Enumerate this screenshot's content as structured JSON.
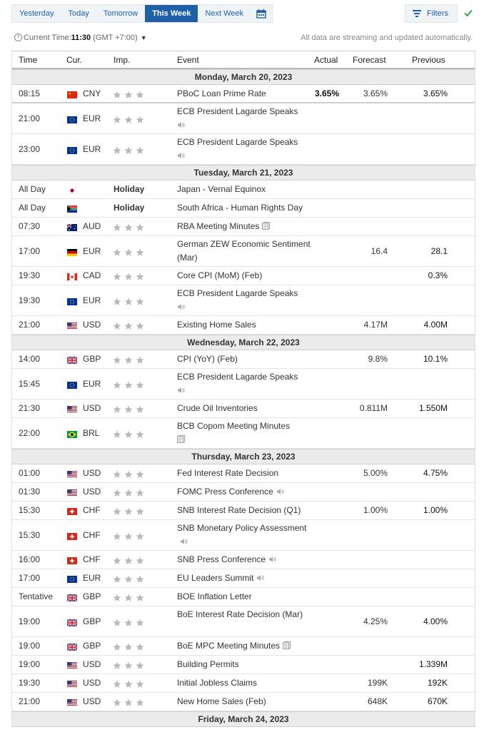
{
  "tabs": [
    {
      "label": "Yesterday",
      "active": false
    },
    {
      "label": "Today",
      "active": false
    },
    {
      "label": "Tomorrow",
      "active": false
    },
    {
      "label": "This Week",
      "active": true
    },
    {
      "label": "Next Week",
      "active": false
    }
  ],
  "filters_label": "Filters",
  "time": {
    "label": "Current Time:",
    "value": "11:30",
    "tz": "(GMT +7:00)",
    "note": "All data are streaming and updated automatically."
  },
  "header": {
    "time": "Time",
    "cur": "Cur.",
    "imp": "Imp.",
    "event": "Event",
    "actual": "Actual",
    "forecast": "Forecast",
    "previous": "Previous"
  },
  "colors": {
    "accent": "#1e5fa8",
    "check": "#3aa043",
    "star": "#b9b9b9"
  },
  "rows": [
    {
      "type": "day",
      "label": "Monday, March 20, 2023"
    },
    {
      "type": "event",
      "time": "08:15",
      "flag": "cn",
      "cur": "CNY",
      "event": "PBoC Loan Prime Rate",
      "actual": "3.65%",
      "forecast": "3.65%",
      "previous": "3.65%",
      "prev_bold": true,
      "h": 26,
      "thick": true
    },
    {
      "type": "event",
      "time": "21:00",
      "flag": "eu",
      "cur": "EUR",
      "event": "ECB President Lagarde Speaks",
      "icon": "speaker-icon",
      "icon_newline": true,
      "h": 43
    },
    {
      "type": "event",
      "time": "23:00",
      "flag": "eu",
      "cur": "EUR",
      "event": "ECB President Lagarde Speaks",
      "icon": "speaker-icon",
      "icon_newline": true,
      "h": 43
    },
    {
      "type": "day",
      "label": "Tuesday, March 21, 2023"
    },
    {
      "type": "holiday",
      "time": "All Day",
      "flag": "jp",
      "label": "Holiday",
      "event": "Japan - Vernal Equinox",
      "h": 26
    },
    {
      "type": "holiday",
      "time": "All Day",
      "flag": "za",
      "label": "Holiday",
      "event": "South Africa - Human Rights Day",
      "h": 26
    },
    {
      "type": "event",
      "time": "07:30",
      "flag": "au",
      "cur": "AUD",
      "event": "RBA Meeting Minutes",
      "icon": "document-icon",
      "h": 26
    },
    {
      "type": "event",
      "time": "17:00",
      "flag": "de",
      "cur": "EUR",
      "event": "German ZEW Economic Sentiment (Mar)",
      "forecast": "16.4",
      "previous": "28.1",
      "prev_bold": true,
      "h": 43
    },
    {
      "type": "event",
      "time": "19:30",
      "flag": "ca",
      "cur": "CAD",
      "event": "Core CPI (MoM) (Feb)",
      "previous": "0.3%",
      "prev_bold": true,
      "h": 26
    },
    {
      "type": "event",
      "time": "19:30",
      "flag": "eu",
      "cur": "EUR",
      "event": "ECB President Lagarde Speaks",
      "icon": "speaker-icon",
      "icon_newline": true,
      "h": 43
    },
    {
      "type": "event",
      "time": "21:00",
      "flag": "us",
      "cur": "USD",
      "event": "Existing Home Sales",
      "forecast": "4.17M",
      "previous": "4.00M",
      "prev_bold": true,
      "h": 26
    },
    {
      "type": "day",
      "label": "Wednesday, March 22, 2023"
    },
    {
      "type": "event",
      "time": "14:00",
      "flag": "gb",
      "cur": "GBP",
      "event": "CPI (YoY) (Feb)",
      "forecast": "9.8%",
      "previous": "10.1%",
      "prev_bold": true,
      "h": 26
    },
    {
      "type": "event",
      "time": "15:45",
      "flag": "eu",
      "cur": "EUR",
      "event": "ECB President Lagarde Speaks",
      "icon": "speaker-icon",
      "icon_newline": true,
      "h": 43
    },
    {
      "type": "event",
      "time": "21:30",
      "flag": "us",
      "cur": "USD",
      "event": "Crude Oil Inventories",
      "forecast": "0.811M",
      "previous": "1.550M",
      "prev_bold": true,
      "h": 26
    },
    {
      "type": "event",
      "time": "22:00",
      "flag": "br",
      "cur": "BRL",
      "event": "BCB Copom Meeting Minutes",
      "icon": "document-icon",
      "icon_newline": true,
      "h": 43
    },
    {
      "type": "day",
      "label": "Thursday, March 23, 2023"
    },
    {
      "type": "event",
      "time": "01:00",
      "flag": "us",
      "cur": "USD",
      "event": "Fed Interest Rate Decision",
      "forecast": "5.00%",
      "previous": "4.75%",
      "prev_bold": true,
      "h": 26
    },
    {
      "type": "event",
      "time": "01:30",
      "flag": "us",
      "cur": "USD",
      "event": "FOMC Press Conference",
      "icon": "speaker-icon",
      "h": 26
    },
    {
      "type": "event",
      "time": "15:30",
      "flag": "ch",
      "cur": "CHF",
      "event": "SNB Interest Rate Decision (Q1)",
      "forecast": "1.00%",
      "previous": "1.00%",
      "prev_bold": true,
      "h": 26
    },
    {
      "type": "event",
      "time": "15:30",
      "flag": "ch",
      "cur": "CHF",
      "event": "SNB Monetary Policy Assessment",
      "icon": "speaker-icon",
      "h": 43
    },
    {
      "type": "event",
      "time": "16:00",
      "flag": "ch",
      "cur": "CHF",
      "event": "SNB Press Conference",
      "icon": "speaker-icon",
      "h": 26
    },
    {
      "type": "event",
      "time": "17:00",
      "flag": "eu",
      "cur": "EUR",
      "event": "EU Leaders Summit",
      "icon": "speaker-icon",
      "h": 26
    },
    {
      "type": "event",
      "time": "Tentative",
      "flag": "gb",
      "cur": "GBP",
      "event": "BOE Inflation Letter",
      "h": 26
    },
    {
      "type": "event",
      "time": "19:00",
      "flag": "gb",
      "cur": "GBP",
      "event": "BoE Interest Rate Decision (Mar)",
      "forecast": "4.25%",
      "previous": "4.00%",
      "prev_bold": true,
      "h": 43
    },
    {
      "type": "event",
      "time": "19:00",
      "flag": "gb",
      "cur": "GBP",
      "event": "BoE MPC Meeting Minutes",
      "icon": "document-icon",
      "h": 26
    },
    {
      "type": "event",
      "time": "19:00",
      "flag": "us",
      "cur": "USD",
      "event": "Building Permits",
      "previous": "1.339M",
      "prev_bold": true,
      "h": 26
    },
    {
      "type": "event",
      "time": "19:30",
      "flag": "us",
      "cur": "USD",
      "event": "Initial Jobless Claims",
      "forecast": "199K",
      "previous": "192K",
      "prev_bold": true,
      "h": 26
    },
    {
      "type": "event",
      "time": "21:00",
      "flag": "us",
      "cur": "USD",
      "event": "New Home Sales (Feb)",
      "forecast": "648K",
      "previous": "670K",
      "prev_bold": true,
      "h": 26
    },
    {
      "type": "day",
      "label": "Friday, March 24, 2023"
    }
  ]
}
